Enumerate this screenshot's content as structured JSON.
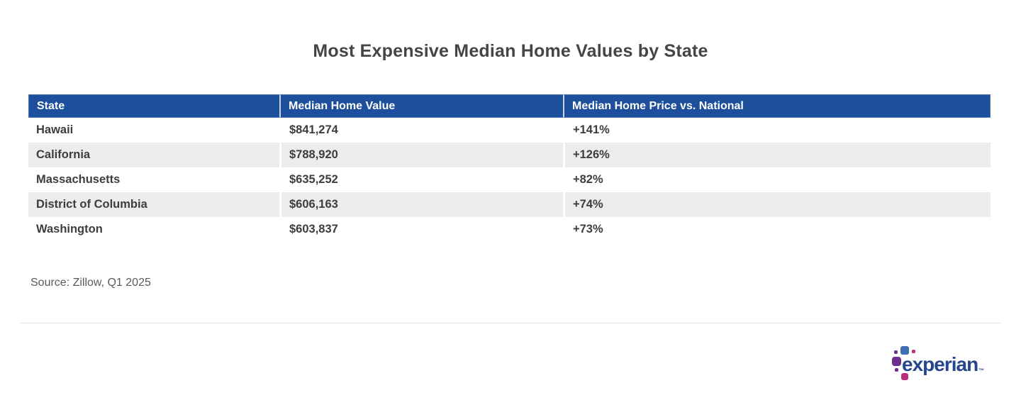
{
  "page": {
    "title": "Most Expensive Median Home Values by State",
    "source_note": "Source: Zillow, Q1 2025"
  },
  "table": {
    "columns": [
      "State",
      "Median Home Value",
      "Median Home Price vs. National"
    ],
    "rows": [
      [
        "Hawaii",
        "$841,274",
        "+141%"
      ],
      [
        "California",
        "$788,920",
        "+126%"
      ],
      [
        "Massachusetts",
        "$635,252",
        "+82%"
      ],
      [
        "District of Columbia",
        "$606,163",
        "+74%"
      ],
      [
        "Washington",
        "$603,837",
        "+73%"
      ]
    ]
  },
  "chart_data": {
    "type": "table",
    "title": "Most Expensive Median Home Values by State",
    "columns": [
      "State",
      "Median Home Value",
      "Median Home Price vs. National"
    ],
    "rows": [
      [
        "Hawaii",
        "$841,274",
        "+141%"
      ],
      [
        "California",
        "$788,920",
        "+126%"
      ],
      [
        "Massachusetts",
        "$635,252",
        "+82%"
      ],
      [
        "District of Columbia",
        "$606,163",
        "+74%"
      ],
      [
        "Washington",
        "$603,837",
        "+73%"
      ]
    ],
    "values_numeric": {
      "median_home_value": [
        841274,
        788920,
        635252,
        606163,
        603837
      ],
      "pct_vs_national": [
        141,
        126,
        82,
        74,
        73
      ]
    },
    "source": "Source: Zillow, Q1 2025"
  },
  "logo": {
    "brand": "experian",
    "trademark": "™"
  },
  "colors": {
    "header_bg": "#1e4f9c",
    "header_border": "#4a72b8",
    "header_text": "#ffffff",
    "row_alt_bg": "#ececec",
    "cell_text": "#3d3d3d",
    "title_text": "#454545",
    "source_text": "#5a5a5a",
    "divider": "#e4e4e4",
    "logo_wordmark": "#26478d",
    "logo_blue": "#406eb3",
    "logo_purple": "#6d2e8c",
    "logo_magenta": "#ba2f7d"
  }
}
